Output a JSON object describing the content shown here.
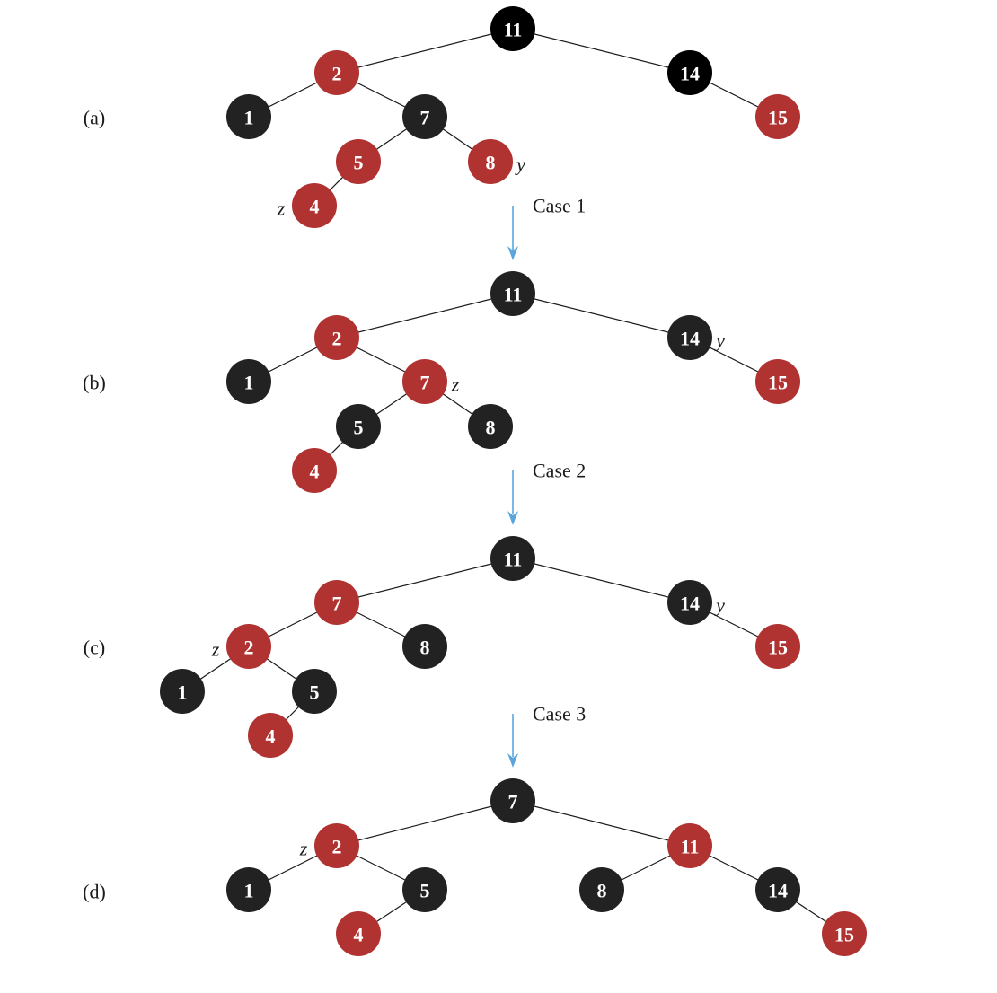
{
  "colors": {
    "red": "#b03231",
    "black": "#222222",
    "black_root": "#000000",
    "arrow": "#5aa6dc",
    "edge": "#1a1a1a"
  },
  "panels": [
    {
      "label": "(a)",
      "nodes": [
        {
          "id": "a11",
          "key": "11",
          "color": "black_root"
        },
        {
          "id": "a2",
          "key": "2",
          "color": "red"
        },
        {
          "id": "a14",
          "key": "14",
          "color": "black_root"
        },
        {
          "id": "a1",
          "key": "1",
          "color": "black"
        },
        {
          "id": "a7",
          "key": "7",
          "color": "black"
        },
        {
          "id": "a15",
          "key": "15",
          "color": "red"
        },
        {
          "id": "a5",
          "key": "5",
          "color": "red"
        },
        {
          "id": "a8",
          "key": "8",
          "color": "red"
        },
        {
          "id": "a4",
          "key": "4",
          "color": "red"
        }
      ],
      "edges": [
        [
          "a11",
          "a2"
        ],
        [
          "a11",
          "a14"
        ],
        [
          "a2",
          "a1"
        ],
        [
          "a2",
          "a7"
        ],
        [
          "a14",
          "a15"
        ],
        [
          "a7",
          "a5"
        ],
        [
          "a7",
          "a8"
        ],
        [
          "a5",
          "a4"
        ]
      ],
      "annotations": [
        {
          "node": "a8",
          "text": "y",
          "side": "right"
        },
        {
          "node": "a4",
          "text": "z",
          "side": "left"
        }
      ]
    },
    {
      "label": "(b)",
      "nodes": [
        {
          "id": "b11",
          "key": "11",
          "color": "black"
        },
        {
          "id": "b2",
          "key": "2",
          "color": "red"
        },
        {
          "id": "b14",
          "key": "14",
          "color": "black"
        },
        {
          "id": "b1",
          "key": "1",
          "color": "black"
        },
        {
          "id": "b7",
          "key": "7",
          "color": "red"
        },
        {
          "id": "b15",
          "key": "15",
          "color": "red"
        },
        {
          "id": "b5",
          "key": "5",
          "color": "black"
        },
        {
          "id": "b8",
          "key": "8",
          "color": "black"
        },
        {
          "id": "b4",
          "key": "4",
          "color": "red"
        }
      ],
      "edges": [
        [
          "b11",
          "b2"
        ],
        [
          "b11",
          "b14"
        ],
        [
          "b2",
          "b1"
        ],
        [
          "b2",
          "b7"
        ],
        [
          "b14",
          "b15"
        ],
        [
          "b7",
          "b5"
        ],
        [
          "b7",
          "b8"
        ],
        [
          "b5",
          "b4"
        ]
      ],
      "annotations": [
        {
          "node": "b14",
          "text": "y",
          "side": "right"
        },
        {
          "node": "b7",
          "text": "z",
          "side": "right"
        }
      ]
    },
    {
      "label": "(c)",
      "nodes": [
        {
          "id": "c11",
          "key": "11",
          "color": "black"
        },
        {
          "id": "c7",
          "key": "7",
          "color": "red"
        },
        {
          "id": "c14",
          "key": "14",
          "color": "black"
        },
        {
          "id": "c2",
          "key": "2",
          "color": "red"
        },
        {
          "id": "c8",
          "key": "8",
          "color": "black"
        },
        {
          "id": "c15",
          "key": "15",
          "color": "red"
        },
        {
          "id": "c1",
          "key": "1",
          "color": "black"
        },
        {
          "id": "c5",
          "key": "5",
          "color": "black"
        },
        {
          "id": "c4",
          "key": "4",
          "color": "red"
        }
      ],
      "edges": [
        [
          "c11",
          "c7"
        ],
        [
          "c11",
          "c14"
        ],
        [
          "c7",
          "c2"
        ],
        [
          "c7",
          "c8"
        ],
        [
          "c14",
          "c15"
        ],
        [
          "c2",
          "c1"
        ],
        [
          "c2",
          "c5"
        ],
        [
          "c5",
          "c4"
        ]
      ],
      "annotations": [
        {
          "node": "c14",
          "text": "y",
          "side": "right"
        },
        {
          "node": "c2",
          "text": "z",
          "side": "left"
        }
      ]
    },
    {
      "label": "(d)",
      "nodes": [
        {
          "id": "d7",
          "key": "7",
          "color": "black"
        },
        {
          "id": "d2",
          "key": "2",
          "color": "red"
        },
        {
          "id": "d11",
          "key": "11",
          "color": "red"
        },
        {
          "id": "d1",
          "key": "1",
          "color": "black"
        },
        {
          "id": "d5",
          "key": "5",
          "color": "black"
        },
        {
          "id": "d8",
          "key": "8",
          "color": "black"
        },
        {
          "id": "d14",
          "key": "14",
          "color": "black"
        },
        {
          "id": "d4",
          "key": "4",
          "color": "red"
        },
        {
          "id": "d15",
          "key": "15",
          "color": "red"
        }
      ],
      "edges": [
        [
          "d7",
          "d2"
        ],
        [
          "d7",
          "d11"
        ],
        [
          "d2",
          "d1"
        ],
        [
          "d2",
          "d5"
        ],
        [
          "d11",
          "d8"
        ],
        [
          "d11",
          "d14"
        ],
        [
          "d5",
          "d4"
        ],
        [
          "d14",
          "d15"
        ]
      ],
      "annotations": [
        {
          "node": "d2",
          "text": "z",
          "side": "left"
        }
      ]
    }
  ],
  "transitions": [
    {
      "label": "Case 1"
    },
    {
      "label": "Case 2"
    },
    {
      "label": "Case 3"
    }
  ]
}
